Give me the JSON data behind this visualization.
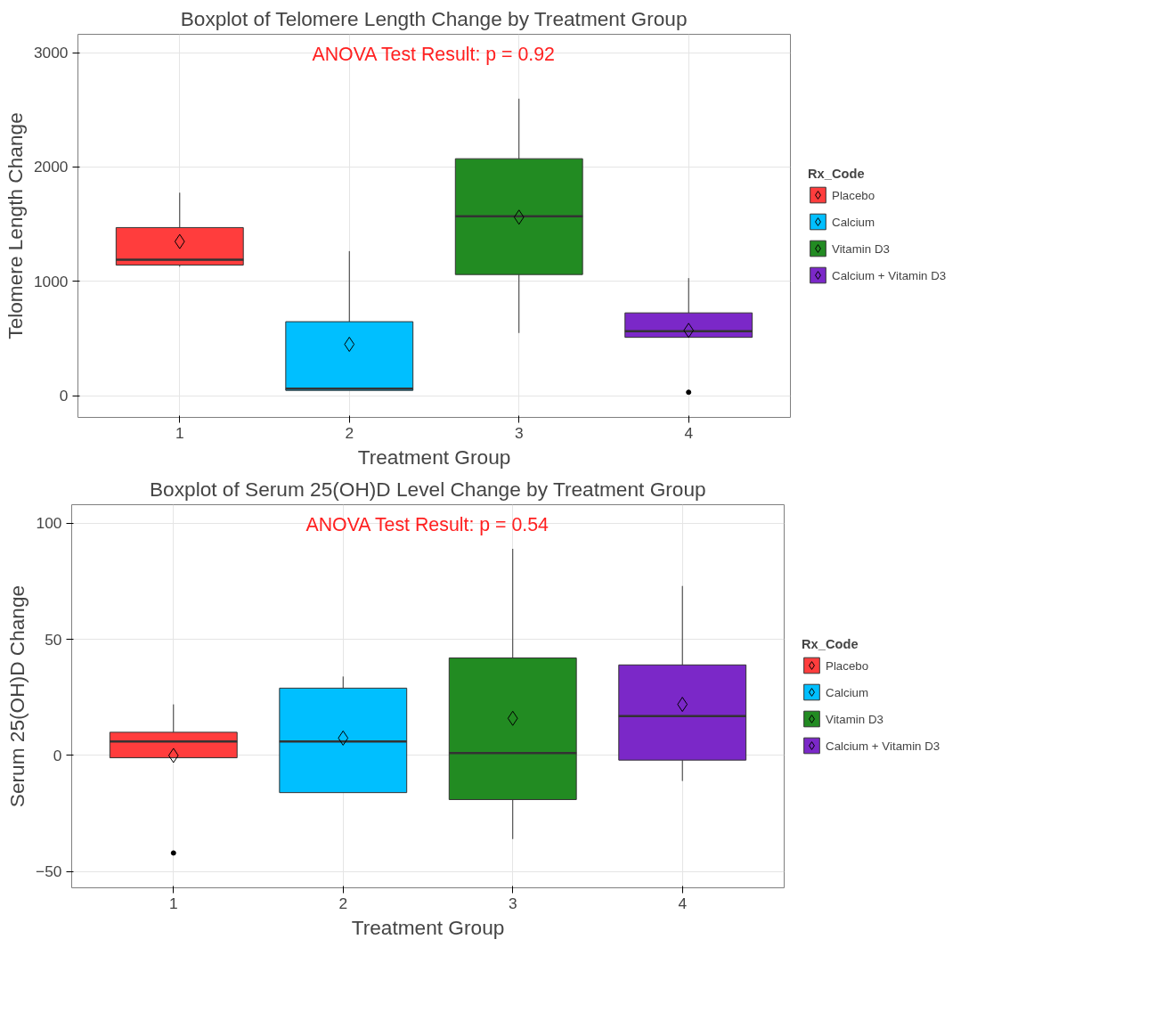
{
  "chart_data": [
    {
      "type": "box",
      "title": "Boxplot of Telomere Length Change by Treatment Group",
      "xlabel": "Treatment Group",
      "ylabel": "Telomere Length Change",
      "legend_title": "Rx_Code",
      "annotations": [
        "ANOVA Test Result: p = 0.92"
      ],
      "categories": [
        "1",
        "2",
        "3",
        "4"
      ],
      "ylim": [
        -190,
        3160
      ],
      "yticks": [
        0,
        1000,
        2000,
        3000
      ],
      "grid": true,
      "legend": "right",
      "series": [
        {
          "name": "Placebo",
          "color": "#ff3d3d",
          "boxes": [
            {
              "low": 1127,
              "q1": 1142,
              "median": 1188,
              "q3": 1470,
              "high": 1775,
              "mean": 1348
            },
            null,
            null,
            null
          ]
        },
        {
          "name": "Calcium",
          "color": "#00bfff",
          "boxes": [
            null,
            {
              "low": 46,
              "q1": 46,
              "median": 61,
              "q3": 647,
              "high": 1264,
              "mean": 449
            },
            null,
            null
          ]
        },
        {
          "name": "Vitamin D3",
          "color": "#228b22",
          "boxes": [
            null,
            null,
            {
              "low": 548,
              "q1": 1059,
              "median": 1569,
              "q3": 2072,
              "high": 2597,
              "mean": 1561
            },
            null
          ]
        },
        {
          "name": "Calcium + Vitamin D3",
          "color": "#7b28c8",
          "boxes": [
            null,
            null,
            null,
            {
              "low": 510,
              "q1": 510,
              "median": 564,
              "q3": 724,
              "high": 1028,
              "mean": 571,
              "outliers": [
                30
              ]
            }
          ]
        }
      ]
    },
    {
      "type": "box",
      "title": "Boxplot of Serum 25(OH)D Level Change by Treatment Group",
      "xlabel": "Treatment Group",
      "ylabel": "Serum 25(OH)D Change",
      "legend_title": "Rx_Code",
      "annotations": [
        "ANOVA Test Result: p = 0.54"
      ],
      "categories": [
        "1",
        "2",
        "3",
        "4"
      ],
      "ylim": [
        -57,
        108
      ],
      "yticks": [
        -50,
        0,
        50,
        100
      ],
      "grid": true,
      "legend": "right",
      "series": [
        {
          "name": "Placebo",
          "color": "#ff3d3d",
          "boxes": [
            {
              "low": -1,
              "q1": -1,
              "median": 6,
              "q3": 10,
              "high": 22,
              "mean": 0,
              "outliers": [
                -42
              ]
            },
            null,
            null,
            null
          ]
        },
        {
          "name": "Calcium",
          "color": "#00bfff",
          "boxes": [
            null,
            {
              "low": -16,
              "q1": -16,
              "median": 6,
              "q3": 29,
              "high": 34,
              "mean": 7.5
            },
            null,
            null
          ]
        },
        {
          "name": "Vitamin D3",
          "color": "#228b22",
          "boxes": [
            null,
            null,
            {
              "low": -36,
              "q1": -19,
              "median": 1,
              "q3": 42,
              "high": 89,
              "mean": 16
            },
            null
          ]
        },
        {
          "name": "Calcium + Vitamin D3",
          "color": "#7b28c8",
          "boxes": [
            null,
            null,
            null,
            {
              "low": -11,
              "q1": -2,
              "median": 17,
              "q3": 39,
              "high": 73,
              "mean": 22
            }
          ]
        }
      ]
    }
  ]
}
